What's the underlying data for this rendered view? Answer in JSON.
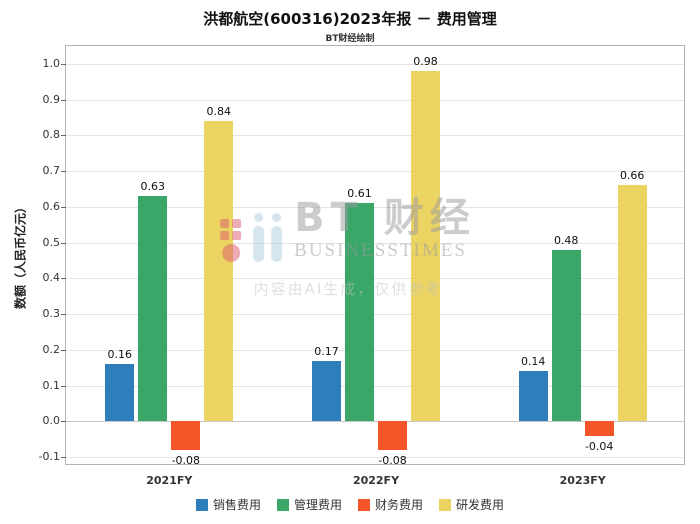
{
  "page": {
    "title": "洪都航空(600316)2023年报 － 费用管理",
    "subtitle": "BT财经绘制"
  },
  "watermark": {
    "bt": "BT",
    "cn": "财经",
    "en": "BUSINESSTIMES",
    "note": "内容由AI生成，仅供参考"
  },
  "chart_data": {
    "type": "bar",
    "title": "洪都航空(600316)2023年报 － 费用管理",
    "categories": [
      "2021FY",
      "2022FY",
      "2023FY"
    ],
    "series": [
      {
        "name": "销售费用",
        "color": "#2e7ebb",
        "values": [
          0.16,
          0.17,
          0.14
        ]
      },
      {
        "name": "管理费用",
        "color": "#3aa768",
        "values": [
          0.63,
          0.61,
          0.48
        ]
      },
      {
        "name": "财务费用",
        "color": "#f4562a",
        "values": [
          -0.08,
          -0.08,
          -0.04
        ]
      },
      {
        "name": "研发费用",
        "color": "#ecd463",
        "values": [
          0.84,
          0.98,
          0.66
        ]
      }
    ],
    "xlabel": "",
    "ylabel": "数额（人民币亿元）",
    "ylim": [
      -0.125,
      1.05
    ],
    "yticks": [
      -0.1,
      0.0,
      0.1,
      0.2,
      0.3,
      0.4,
      0.5,
      0.6,
      0.7,
      0.8,
      0.9,
      1.0
    ],
    "grid": true,
    "legend_position": "bottom"
  }
}
